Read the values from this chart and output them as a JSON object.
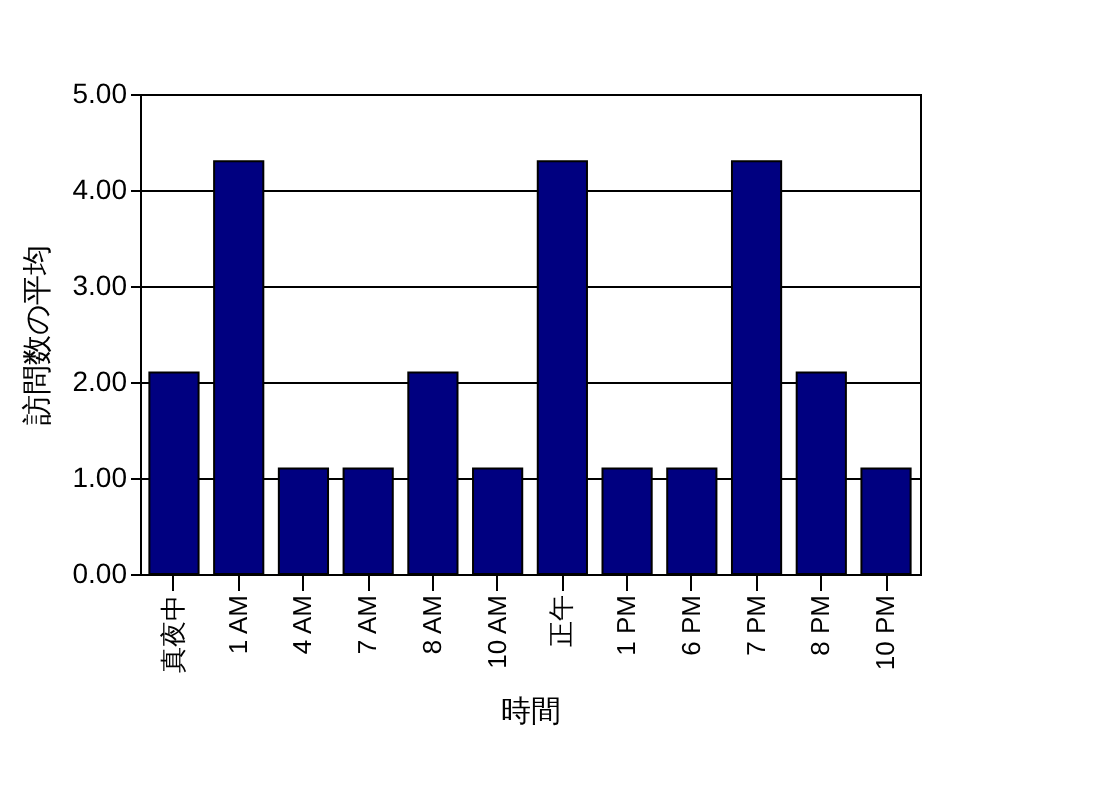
{
  "chart_data": {
    "type": "bar",
    "xlabel": "時間",
    "ylabel": "訪問数の平均",
    "categories": [
      "真夜中",
      "1 AM",
      "4 AM",
      "7 AM",
      "8 AM",
      "10 AM",
      "正午",
      "1 PM",
      "6 PM",
      "7 PM",
      "8 PM",
      "10 PM"
    ],
    "values": [
      2.1,
      4.3,
      1.1,
      1.1,
      2.1,
      1.1,
      4.3,
      1.1,
      1.1,
      4.3,
      2.1,
      1.1
    ],
    "color": "#000080",
    "ylim": [
      0,
      5
    ],
    "yticks": [
      {
        "value": 0,
        "label": "0.00"
      },
      {
        "value": 1,
        "label": "1.00"
      },
      {
        "value": 2,
        "label": "2.00"
      },
      {
        "value": 3,
        "label": "3.00"
      },
      {
        "value": 4,
        "label": "4.00"
      },
      {
        "value": 5,
        "label": "5.00"
      }
    ],
    "grid": "y"
  }
}
